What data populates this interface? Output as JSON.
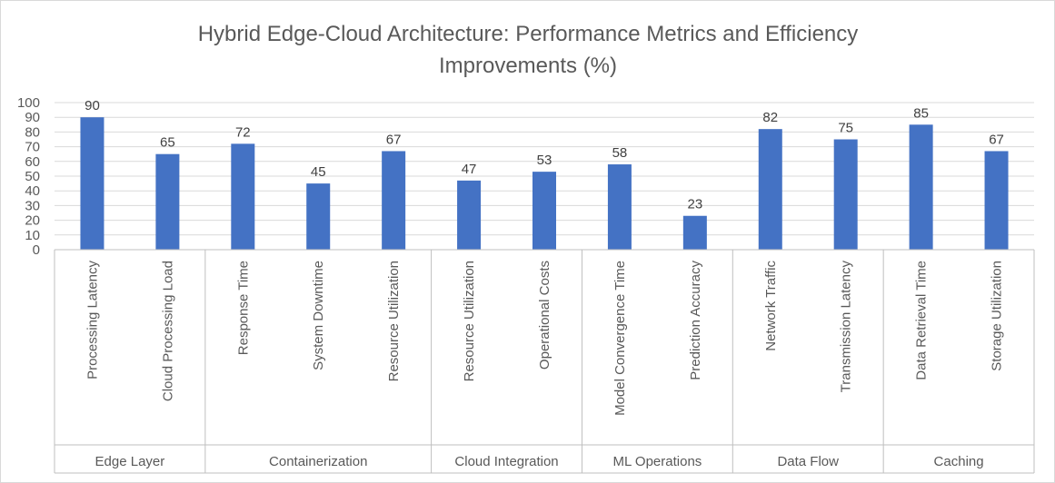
{
  "chart_data": {
    "type": "bar",
    "title_lines": [
      "Hybrid Edge-Cloud Architecture: Performance Metrics and Efficiency",
      "Improvements (%)"
    ],
    "ylim": [
      0,
      100
    ],
    "y_ticks": [
      "0",
      "10",
      "20",
      "30",
      "40",
      "50",
      "60",
      "70",
      "80",
      "90",
      "100"
    ],
    "grid": true,
    "bar_color": "#4472C4",
    "groups": [
      {
        "name": "Edge Layer",
        "categories": [
          "Processing Latency",
          "Cloud Processing Load"
        ],
        "values": [
          90,
          65
        ]
      },
      {
        "name": "Containerization",
        "categories": [
          "Response Time",
          "System Downtime",
          "Resource Utilization"
        ],
        "values": [
          72,
          45,
          67
        ]
      },
      {
        "name": "Cloud Integration",
        "categories": [
          "Resource Utilization",
          "Operational Costs"
        ],
        "values": [
          47,
          53
        ]
      },
      {
        "name": "ML Operations",
        "categories": [
          "Model Convergence Time",
          "Prediction Accuracy"
        ],
        "values": [
          58,
          23
        ]
      },
      {
        "name": "Data Flow",
        "categories": [
          "Network Traffic",
          "Transmission Latency"
        ],
        "values": [
          82,
          75
        ]
      },
      {
        "name": "Caching",
        "categories": [
          "Data Retrieval Time",
          "Storage Utilization"
        ],
        "values": [
          85,
          67
        ]
      }
    ]
  }
}
